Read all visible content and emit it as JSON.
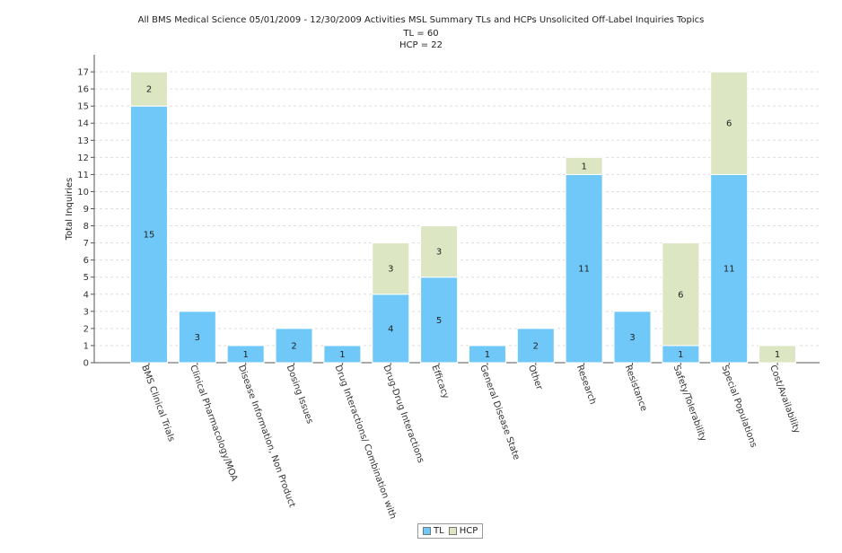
{
  "title": {
    "main": "All BMS Medical Science 05/01/2009 - 12/30/2009 Activities MSL Summary TLs and HCPs Unsolicited Off-Label Inquiries Topics",
    "tl_line": "TL = 60",
    "hcp_line": "HCP = 22"
  },
  "chart_data": {
    "type": "bar",
    "stacked": true,
    "title": "All BMS Medical Science 05/01/2009 - 12/30/2009 Activities MSL Summary TLs and HCPs Unsolicited Off-Label Inquiries Topics",
    "subtitle": [
      "TL = 60",
      "HCP = 22"
    ],
    "xlabel": "",
    "ylabel": "Total Inquiries",
    "ylim": [
      0,
      18
    ],
    "yticks": [
      0,
      1,
      2,
      3,
      4,
      5,
      6,
      7,
      8,
      9,
      10,
      11,
      12,
      13,
      14,
      15,
      16,
      17
    ],
    "grid": true,
    "legend_position": "bottom-center",
    "categories": [
      "BMS Clinical Trials",
      "Clinical Pharmacology/MOA",
      "Disease Information, Non Product",
      "Dosing Issues",
      "Drug Interactions/ Combination with",
      "Drug-Drug Interactions",
      "Efficacy",
      "General Disease State",
      "Other",
      "Research",
      "Resistance",
      "Safety/Tolerability",
      "Special Populations",
      "Cost/Availability"
    ],
    "series": [
      {
        "name": "TL",
        "color": "#6fc8f8",
        "values": [
          15,
          3,
          1,
          2,
          1,
          4,
          5,
          1,
          2,
          11,
          3,
          1,
          11,
          0
        ]
      },
      {
        "name": "HCP",
        "color": "#dde6c3",
        "values": [
          2,
          0,
          0,
          0,
          0,
          3,
          3,
          0,
          0,
          1,
          0,
          6,
          6,
          1
        ]
      }
    ]
  },
  "legend": {
    "items": [
      {
        "label": "TL",
        "color": "#6fc8f8"
      },
      {
        "label": "HCP",
        "color": "#dde6c3"
      }
    ]
  }
}
